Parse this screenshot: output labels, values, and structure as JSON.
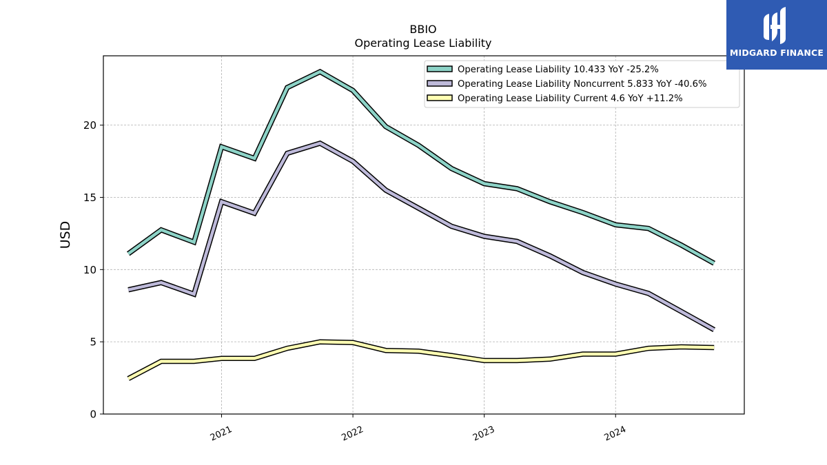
{
  "brand": {
    "name": "MIDGARD FINANCE",
    "bg_color": "#2f5bb3"
  },
  "chart_data": {
    "type": "line",
    "title": "BBIO",
    "subtitle": "Operating Lease Liability",
    "xlabel": "",
    "ylabel": "USD",
    "ylim": [
      0,
      24.8
    ],
    "xlim": [
      2020.1,
      2024.98
    ],
    "yticks": [
      0,
      5,
      10,
      15,
      20
    ],
    "xticks": [
      {
        "value": 2021.0,
        "label": "2021"
      },
      {
        "value": 2022.0,
        "label": "2022"
      },
      {
        "value": 2023.0,
        "label": "2023"
      },
      {
        "value": 2024.0,
        "label": "2024"
      }
    ],
    "grid": true,
    "legend_position": "upper right",
    "x": [
      2020.29,
      2020.54,
      2020.79,
      2021.0,
      2021.25,
      2021.5,
      2021.75,
      2022.0,
      2022.25,
      2022.5,
      2022.75,
      2023.0,
      2023.25,
      2023.5,
      2023.75,
      2024.0,
      2024.25,
      2024.5,
      2024.75
    ],
    "series": [
      {
        "name": "Operating Lease Liability",
        "legend": "Operating Lease Liability  10.433 YoY -25.2%",
        "color": "#8dd3c7",
        "values": [
          11.1,
          12.75,
          11.9,
          18.5,
          17.7,
          22.6,
          23.7,
          22.4,
          19.9,
          18.6,
          17.0,
          15.95,
          15.6,
          14.7,
          13.95,
          13.1,
          12.85,
          11.7,
          10.433
        ]
      },
      {
        "name": "Operating Lease Liability Noncurrent",
        "legend": "Operating Lease Liability Noncurrent  5.833 YoY -40.6%",
        "color": "#bebada",
        "values": [
          8.6,
          9.1,
          8.3,
          14.7,
          13.9,
          18.05,
          18.75,
          17.5,
          15.5,
          14.25,
          13.0,
          12.3,
          11.95,
          10.95,
          9.8,
          9.0,
          8.35,
          7.1,
          5.833
        ]
      },
      {
        "name": "Operating Lease Liability Current",
        "legend": "Operating Lease Liability Current  4.6 YoY +11.2%",
        "color": "#ffffb3",
        "values": [
          2.45,
          3.65,
          3.65,
          3.85,
          3.85,
          4.55,
          5.0,
          4.95,
          4.4,
          4.35,
          4.05,
          3.7,
          3.7,
          3.8,
          4.15,
          4.15,
          4.55,
          4.65,
          4.6
        ]
      }
    ]
  }
}
